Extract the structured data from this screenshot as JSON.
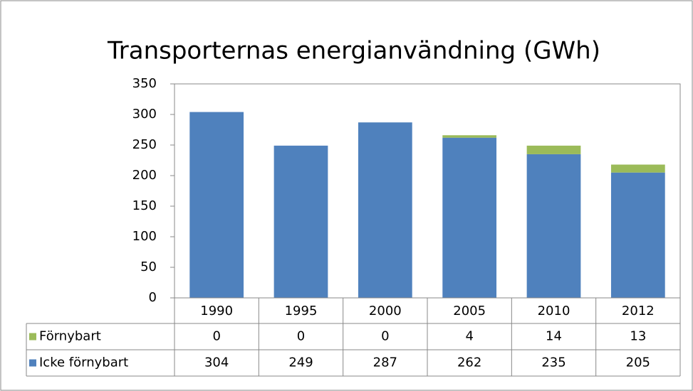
{
  "chart_data": {
    "type": "stacked_bar",
    "title": "Transporternas energianvändning  (GWh)",
    "categories": [
      "1990",
      "1995",
      "2000",
      "2005",
      "2010",
      "2012"
    ],
    "series": [
      {
        "name": "Förnybart",
        "color": "#9bbb59",
        "values": [
          0,
          0,
          0,
          4,
          14,
          13
        ]
      },
      {
        "name": "Icke förnybart",
        "color": "#4f81bd",
        "values": [
          304,
          249,
          287,
          262,
          235,
          205
        ]
      }
    ],
    "ylim": [
      0,
      350
    ],
    "yticks": [
      0,
      50,
      100,
      150,
      200,
      250,
      300,
      350
    ],
    "grid": false,
    "data_table": true
  }
}
